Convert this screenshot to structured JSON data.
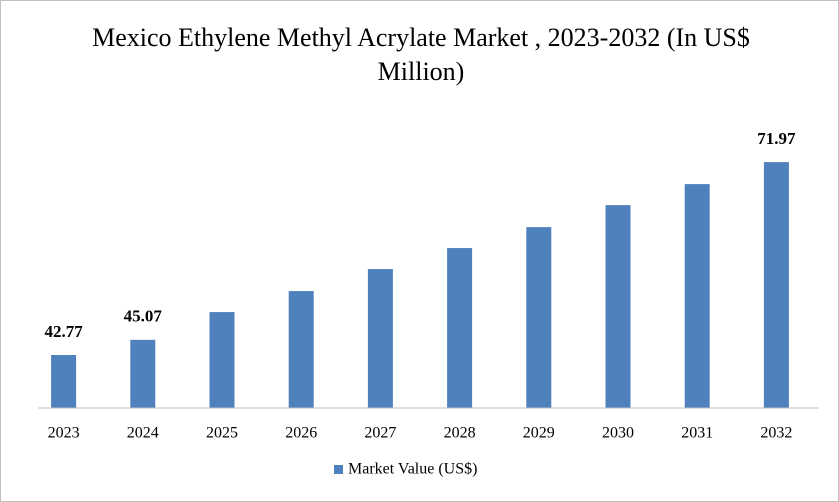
{
  "chart_data": {
    "type": "bar",
    "title": "Mexico Ethylene Methyl Acrylate Market , 2023-2032 (In US$ Million)",
    "categories": [
      "2023",
      "2024",
      "2025",
      "2026",
      "2027",
      "2028",
      "2029",
      "2030",
      "2031",
      "2032"
    ],
    "series": [
      {
        "name": "Market Value (US$)",
        "color": "#4f81bd",
        "values": [
          42.77,
          45.07,
          49.27,
          52.45,
          55.78,
          58.96,
          62.13,
          65.46,
          68.64,
          71.97
        ],
        "value_labels": [
          "42.77",
          "45.07",
          null,
          null,
          null,
          null,
          null,
          null,
          null,
          "71.97"
        ]
      }
    ],
    "ylim": [
      34.75,
      79.1
    ]
  }
}
